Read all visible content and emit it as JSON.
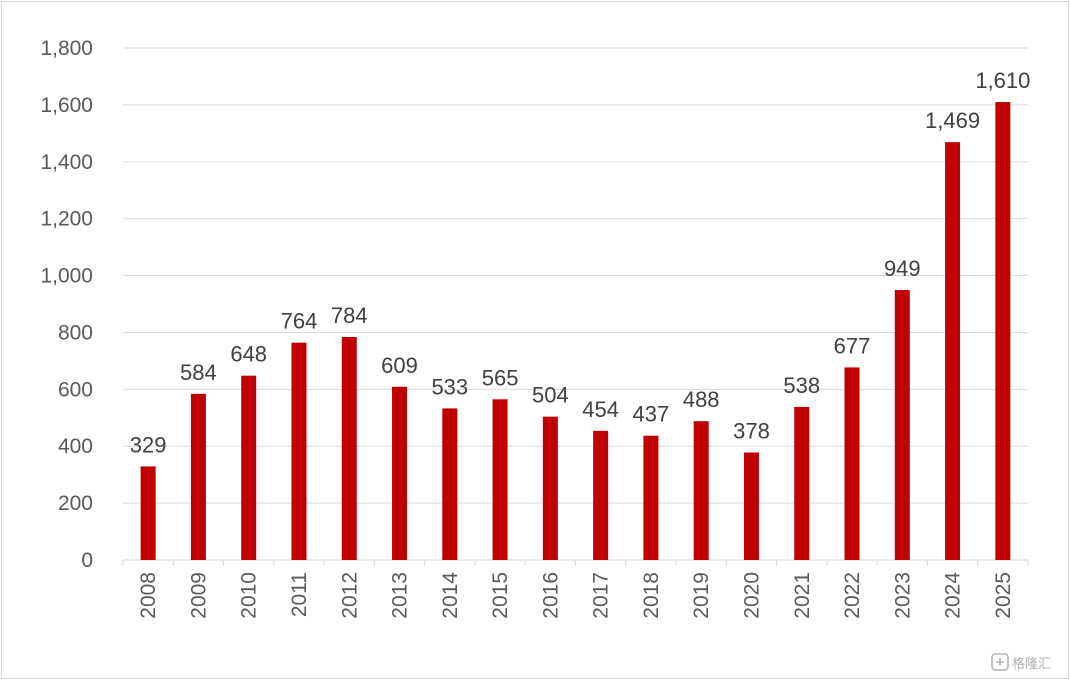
{
  "chart_data": {
    "type": "bar",
    "categories": [
      "2008",
      "2009",
      "2010",
      "2011",
      "2012",
      "2013",
      "2014",
      "2015",
      "2016",
      "2017",
      "2018",
      "2019",
      "2020",
      "2021",
      "2022",
      "2023",
      "2024",
      "2025"
    ],
    "values": [
      329,
      584,
      648,
      764,
      784,
      609,
      533,
      565,
      504,
      454,
      437,
      488,
      378,
      538,
      677,
      949,
      1469,
      1610
    ],
    "data_labels": [
      "329",
      "584",
      "648",
      "764",
      "784",
      "609",
      "533",
      "565",
      "504",
      "454",
      "437",
      "488",
      "378",
      "538",
      "677",
      "949",
      "1,469",
      "1,610"
    ],
    "ylim": [
      0,
      1800
    ],
    "yticks": [
      0,
      200,
      400,
      600,
      800,
      1000,
      1200,
      1400,
      1600,
      1800
    ],
    "ytick_labels": [
      "0",
      "200",
      "400",
      "600",
      "800",
      "1,000",
      "1,200",
      "1,400",
      "1,600",
      "1,800"
    ],
    "grid": true,
    "legend": "none",
    "bar_color": "#c00000",
    "title": "",
    "xlabel": "",
    "ylabel": ""
  },
  "watermark": {
    "text": "格隆汇",
    "icon": "gelonghui-logo-icon"
  }
}
